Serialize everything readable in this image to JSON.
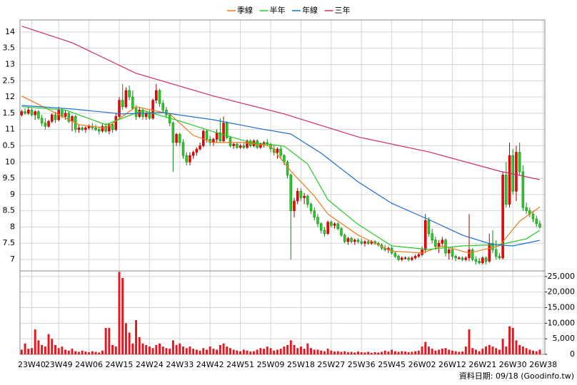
{
  "chart_data": {
    "type": "candlestick",
    "up_color": "#ff0000",
    "down_color": "#2ecc2e",
    "volume_color": "#e8141e",
    "footer": "資料日期: 09/18 (Goodinfo.tw)",
    "grid": true,
    "xlim": [
      -0.5,
      155.5
    ],
    "xticks": [
      {
        "value": 3,
        "label": "23W40"
      },
      {
        "value": 11,
        "label": "23W49"
      },
      {
        "value": 20,
        "label": "24W06"
      },
      {
        "value": 29,
        "label": "24W15"
      },
      {
        "value": 38,
        "label": "24W24"
      },
      {
        "value": 47,
        "label": "24W33"
      },
      {
        "value": 56,
        "label": "24W42"
      },
      {
        "value": 65,
        "label": "24W51"
      },
      {
        "value": 74,
        "label": "25W09"
      },
      {
        "value": 83,
        "label": "25W18"
      },
      {
        "value": 92,
        "label": "25W27"
      },
      {
        "value": 101,
        "label": "25W36"
      },
      {
        "value": 110,
        "label": "25W45"
      },
      {
        "value": 119,
        "label": "26W02"
      },
      {
        "value": 128,
        "label": "26W12"
      },
      {
        "value": 137,
        "label": "26W21"
      },
      {
        "value": 146,
        "label": "26W30"
      },
      {
        "value": 155,
        "label": "26W38"
      }
    ],
    "ylim": [
      6.65,
      14.37
    ],
    "yticks": [
      7,
      7.5,
      8,
      8.5,
      9,
      9.5,
      10,
      {
        "value": 10.5,
        "label": "0.5"
      },
      11,
      {
        "value": 11.5,
        "label": "1.5"
      },
      12,
      {
        "value": 12.5,
        "label": "2.5"
      },
      13,
      {
        "value": 13.5,
        "label": "3.5"
      },
      14
    ],
    "y2lim": [
      0,
      26800
    ],
    "y2ticks": [
      0,
      {
        "value": 5000,
        "label": "5,000"
      },
      {
        "value": 10000,
        "label": "10,000"
      },
      {
        "value": 15000,
        "label": "15,000"
      },
      {
        "value": 20000,
        "label": "20,000"
      },
      {
        "value": 25000,
        "label": "25,000"
      }
    ],
    "candles": [
      [
        11.45,
        11.6,
        11.4,
        11.55
      ],
      [
        11.55,
        11.65,
        11.45,
        11.5
      ],
      [
        11.5,
        11.7,
        11.45,
        11.6
      ],
      [
        11.6,
        11.65,
        11.4,
        11.45
      ],
      [
        11.45,
        11.6,
        11.3,
        11.55
      ],
      [
        11.55,
        11.6,
        11.3,
        11.35
      ],
      [
        11.35,
        11.45,
        11.1,
        11.2
      ],
      [
        11.2,
        11.35,
        11.0,
        11.1
      ],
      [
        11.1,
        11.3,
        11.05,
        11.25
      ],
      [
        11.25,
        11.5,
        11.2,
        11.45
      ],
      [
        11.45,
        11.55,
        11.2,
        11.3
      ],
      [
        11.3,
        11.7,
        11.25,
        11.6
      ],
      [
        11.6,
        11.65,
        11.35,
        11.4
      ],
      [
        11.4,
        11.6,
        11.3,
        11.5
      ],
      [
        11.5,
        11.55,
        11.2,
        11.25
      ],
      [
        11.25,
        11.45,
        10.95,
        11.4
      ],
      [
        11.4,
        11.45,
        10.9,
        11.0
      ],
      [
        11.0,
        11.15,
        10.9,
        11.05
      ],
      [
        11.05,
        11.1,
        10.95,
        11.0
      ],
      [
        11.0,
        11.1,
        10.9,
        11.05
      ],
      [
        11.05,
        11.15,
        11.0,
        11.1
      ],
      [
        11.1,
        11.2,
        11.0,
        11.05
      ],
      [
        11.05,
        11.15,
        10.95,
        11.0
      ],
      [
        11.0,
        11.1,
        10.85,
        10.95
      ],
      [
        10.95,
        11.2,
        10.9,
        11.1
      ],
      [
        11.1,
        11.2,
        10.9,
        10.95
      ],
      [
        10.95,
        11.2,
        10.85,
        11.15
      ],
      [
        11.15,
        11.2,
        10.9,
        11.0
      ],
      [
        11.0,
        11.5,
        10.95,
        11.4
      ],
      [
        11.4,
        12.0,
        11.3,
        11.9
      ],
      [
        11.9,
        12.4,
        11.6,
        11.7
      ],
      [
        11.7,
        12.3,
        11.65,
        12.2
      ],
      [
        12.2,
        12.35,
        11.9,
        12.0
      ],
      [
        12.0,
        12.2,
        11.6,
        11.65
      ],
      [
        11.65,
        11.75,
        11.3,
        11.4
      ],
      [
        11.4,
        11.7,
        11.35,
        11.6
      ],
      [
        11.6,
        11.65,
        11.3,
        11.4
      ],
      [
        11.4,
        11.55,
        11.3,
        11.5
      ],
      [
        11.5,
        11.6,
        11.3,
        11.35
      ],
      [
        11.35,
        11.95,
        11.3,
        11.9
      ],
      [
        11.9,
        12.4,
        11.8,
        12.2
      ],
      [
        12.2,
        12.25,
        11.7,
        11.8
      ],
      [
        11.8,
        11.9,
        11.5,
        11.6
      ],
      [
        11.6,
        11.7,
        11.35,
        11.45
      ],
      [
        11.45,
        11.5,
        11.1,
        11.2
      ],
      [
        11.2,
        11.25,
        9.7,
        10.6
      ],
      [
        10.6,
        10.9,
        10.5,
        10.85
      ],
      [
        10.85,
        10.9,
        10.5,
        10.6
      ],
      [
        10.6,
        10.7,
        10.1,
        10.2
      ],
      [
        10.2,
        10.3,
        9.9,
        10.0
      ],
      [
        10.0,
        10.3,
        9.9,
        10.2
      ],
      [
        10.2,
        10.35,
        10.1,
        10.3
      ],
      [
        10.3,
        10.45,
        10.2,
        10.4
      ],
      [
        10.4,
        10.6,
        10.35,
        10.5
      ],
      [
        10.5,
        11.0,
        10.45,
        10.95
      ],
      [
        10.95,
        11.0,
        10.6,
        10.7
      ],
      [
        10.7,
        10.8,
        10.5,
        10.6
      ],
      [
        10.6,
        10.75,
        10.5,
        10.7
      ],
      [
        10.7,
        11.0,
        10.6,
        10.9
      ],
      [
        10.9,
        11.35,
        10.6,
        10.65
      ],
      [
        10.65,
        11.4,
        10.6,
        11.2
      ],
      [
        11.2,
        11.25,
        10.7,
        10.75
      ],
      [
        10.75,
        10.8,
        10.45,
        10.5
      ],
      [
        10.5,
        10.6,
        10.4,
        10.55
      ],
      [
        10.55,
        10.6,
        10.4,
        10.45
      ],
      [
        10.45,
        10.55,
        10.4,
        10.5
      ],
      [
        10.5,
        10.6,
        10.4,
        10.45
      ],
      [
        10.45,
        10.7,
        10.4,
        10.65
      ],
      [
        10.65,
        10.7,
        10.45,
        10.5
      ],
      [
        10.5,
        10.7,
        10.45,
        10.65
      ],
      [
        10.65,
        10.7,
        10.4,
        10.45
      ],
      [
        10.45,
        10.6,
        10.4,
        10.55
      ],
      [
        10.55,
        10.65,
        10.45,
        10.6
      ],
      [
        10.6,
        10.7,
        10.5,
        10.55
      ],
      [
        10.55,
        10.6,
        10.3,
        10.4
      ],
      [
        10.4,
        10.5,
        10.2,
        10.3
      ],
      [
        10.3,
        10.45,
        10.1,
        10.4
      ],
      [
        10.4,
        10.5,
        10.1,
        10.2
      ],
      [
        10.2,
        10.25,
        9.9,
        10.0
      ],
      [
        10.0,
        10.05,
        9.5,
        9.6
      ],
      [
        9.6,
        9.65,
        7.0,
        8.5
      ],
      [
        8.5,
        8.9,
        8.3,
        8.8
      ],
      [
        8.8,
        9.2,
        8.7,
        9.1
      ],
      [
        9.1,
        9.2,
        8.8,
        8.9
      ],
      [
        8.9,
        9.05,
        8.7,
        8.95
      ],
      [
        8.95,
        9.0,
        8.6,
        8.7
      ],
      [
        8.7,
        8.75,
        8.4,
        8.5
      ],
      [
        8.5,
        8.6,
        8.2,
        8.3
      ],
      [
        8.3,
        8.4,
        8.0,
        8.1
      ],
      [
        8.1,
        8.15,
        7.8,
        7.9
      ],
      [
        7.9,
        8.0,
        7.7,
        7.8
      ],
      [
        7.8,
        8.2,
        7.75,
        8.15
      ],
      [
        8.15,
        8.2,
        8.0,
        8.05
      ],
      [
        8.05,
        8.15,
        7.95,
        8.1
      ],
      [
        8.1,
        8.15,
        7.9,
        7.95
      ],
      [
        7.95,
        8.0,
        7.7,
        7.75
      ],
      [
        7.75,
        7.8,
        7.5,
        7.55
      ],
      [
        7.55,
        7.7,
        7.45,
        7.65
      ],
      [
        7.65,
        7.7,
        7.5,
        7.55
      ],
      [
        7.55,
        7.65,
        7.45,
        7.6
      ],
      [
        7.6,
        7.65,
        7.5,
        7.55
      ],
      [
        7.55,
        7.65,
        7.45,
        7.5
      ],
      [
        7.5,
        7.6,
        7.4,
        7.55
      ],
      [
        7.55,
        7.6,
        7.45,
        7.5
      ],
      [
        7.5,
        7.6,
        7.45,
        7.55
      ],
      [
        7.55,
        7.6,
        7.45,
        7.5
      ],
      [
        7.5,
        7.55,
        7.4,
        7.45
      ],
      [
        7.45,
        7.5,
        7.3,
        7.35
      ],
      [
        7.35,
        7.45,
        7.25,
        7.3
      ],
      [
        7.3,
        7.4,
        7.2,
        7.35
      ],
      [
        7.35,
        7.4,
        7.15,
        7.2
      ],
      [
        7.2,
        7.25,
        7.05,
        7.1
      ],
      [
        7.1,
        7.15,
        6.95,
        7.0
      ],
      [
        7.0,
        7.1,
        6.95,
        7.05
      ],
      [
        7.05,
        7.1,
        7.0,
        7.05
      ],
      [
        7.05,
        7.1,
        6.95,
        7.0
      ],
      [
        7.0,
        7.1,
        6.95,
        7.05
      ],
      [
        7.05,
        7.15,
        7.0,
        7.1
      ],
      [
        7.1,
        7.2,
        7.05,
        7.15
      ],
      [
        7.15,
        7.4,
        7.1,
        7.3
      ],
      [
        7.3,
        8.4,
        7.2,
        8.2
      ],
      [
        8.2,
        8.3,
        7.7,
        7.8
      ],
      [
        7.8,
        7.95,
        7.5,
        7.6
      ],
      [
        7.6,
        7.7,
        7.3,
        7.4
      ],
      [
        7.4,
        7.6,
        7.2,
        7.5
      ],
      [
        7.5,
        7.7,
        7.4,
        7.6
      ],
      [
        7.6,
        7.65,
        7.1,
        7.2
      ],
      [
        7.2,
        7.35,
        7.0,
        7.3
      ],
      [
        7.3,
        7.4,
        7.0,
        7.1
      ],
      [
        7.1,
        7.15,
        6.95,
        7.05
      ],
      [
        7.05,
        7.1,
        7.0,
        7.05
      ],
      [
        7.05,
        7.1,
        6.95,
        7.0
      ],
      [
        7.0,
        7.1,
        6.95,
        7.05
      ],
      [
        7.05,
        8.4,
        6.95,
        7.3
      ],
      [
        7.3,
        7.35,
        6.95,
        7.0
      ],
      [
        7.0,
        7.1,
        6.85,
        6.95
      ],
      [
        6.95,
        7.05,
        6.85,
        6.9
      ],
      [
        6.9,
        7.1,
        6.85,
        7.05
      ],
      [
        7.05,
        7.1,
        6.85,
        6.95
      ],
      [
        6.95,
        7.8,
        6.9,
        7.5
      ],
      [
        7.5,
        7.9,
        7.2,
        7.3
      ],
      [
        7.3,
        7.6,
        7.0,
        7.1
      ],
      [
        7.1,
        7.2,
        7.0,
        7.05
      ],
      [
        7.05,
        9.7,
        7.0,
        9.6
      ],
      [
        9.6,
        10.0,
        8.6,
        8.7
      ],
      [
        8.7,
        10.6,
        8.6,
        10.2
      ],
      [
        10.2,
        10.4,
        9.0,
        9.1
      ],
      [
        9.1,
        10.5,
        8.8,
        10.3
      ],
      [
        10.3,
        10.6,
        9.6,
        9.7
      ],
      [
        9.7,
        9.9,
        8.5,
        8.6
      ],
      [
        8.6,
        8.75,
        8.4,
        8.5
      ],
      [
        8.5,
        8.6,
        8.3,
        8.4
      ],
      [
        8.4,
        8.5,
        8.15,
        8.25
      ],
      [
        8.25,
        8.35,
        8.0,
        8.1
      ],
      [
        8.1,
        8.2,
        7.95,
        8.0
      ]
    ],
    "volume": [
      1500,
      3500,
      1800,
      2000,
      8000,
      4500,
      3000,
      2500,
      6500,
      5000,
      3000,
      2000,
      2500,
      1500,
      1200,
      1800,
      1000,
      800,
      1200,
      900,
      700,
      1000,
      800,
      600,
      1200,
      8500,
      8500,
      3000,
      2500,
      26500,
      24500,
      10000,
      7000,
      3500,
      11000,
      5500,
      3500,
      3000,
      2500,
      2000,
      3000,
      3500,
      2500,
      2000,
      1800,
      4500,
      3000,
      3500,
      2500,
      2000,
      2500,
      1800,
      1500,
      1200,
      2000,
      1500,
      2500,
      1800,
      1500,
      3000,
      3500,
      2500,
      2000,
      1500,
      1200,
      1000,
      1500,
      1200,
      900,
      1000,
      1500,
      2000,
      1800,
      2500,
      2000,
      1200,
      1500,
      1800,
      2500,
      3000,
      4500,
      3000,
      2000,
      2500,
      1800,
      3500,
      2000,
      1500,
      1500,
      1200,
      1000,
      1800,
      1200,
      900,
      1000,
      800,
      1000,
      700,
      800,
      600,
      900,
      700,
      600,
      800,
      500,
      700,
      600,
      800,
      1200,
      900,
      1500,
      1000,
      800,
      1000,
      900,
      700,
      800,
      1000,
      1200,
      2500,
      4000,
      2500,
      1800,
      1200,
      1500,
      1800,
      2000,
      1500,
      1200,
      1000,
      800,
      900,
      2500,
      8000,
      2000,
      1500,
      1000,
      1800,
      2500,
      3000,
      2500,
      2000,
      1500,
      5000,
      2500,
      9000,
      8500,
      4500,
      3000,
      2500,
      2000,
      1500,
      1200,
      1000,
      1500
    ],
    "series": [
      {
        "name": "季線",
        "color": "#f07818",
        "x": [
          0,
          8.5,
          17,
          25,
          34,
          44,
          51,
          57,
          66,
          74,
          80,
          87,
          91,
          100,
          110,
          119,
          125,
          133,
          142,
          148,
          154
        ],
        "values": [
          12.03,
          11.59,
          11.15,
          11.04,
          11.7,
          11.48,
          10.82,
          10.6,
          10.6,
          10.49,
          9.72,
          8.95,
          8.4,
          7.75,
          7.26,
          7.2,
          7.42,
          7.2,
          7.42,
          8.18,
          8.62
        ]
      },
      {
        "name": "半年",
        "color": "#22cc22",
        "x": [
          0,
          13,
          25,
          36,
          47,
          57,
          68,
          78,
          85,
          91,
          100,
          110,
          121,
          131,
          142,
          150,
          154
        ],
        "values": [
          11.7,
          11.6,
          11.15,
          11.59,
          11.26,
          10.93,
          10.6,
          10.49,
          9.94,
          8.84,
          8.08,
          7.42,
          7.31,
          7.42,
          7.46,
          7.64,
          7.9
        ]
      },
      {
        "name": "年線",
        "color": "#1f6fd0",
        "x": [
          0,
          15,
          30,
          42,
          57,
          70,
          80,
          89,
          100,
          110,
          121,
          131,
          140,
          146,
          154
        ],
        "values": [
          11.74,
          11.63,
          11.48,
          11.52,
          11.3,
          11.04,
          10.86,
          10.27,
          9.39,
          8.73,
          8.23,
          7.75,
          7.46,
          7.42,
          7.59
        ]
      },
      {
        "name": "三年",
        "color": "#d02a6a",
        "x": [
          0,
          15,
          34,
          57,
          78,
          100,
          121,
          142,
          154
        ],
        "values": [
          14.18,
          13.67,
          12.73,
          12.03,
          11.48,
          10.77,
          10.31,
          9.72,
          9.46
        ]
      }
    ]
  }
}
